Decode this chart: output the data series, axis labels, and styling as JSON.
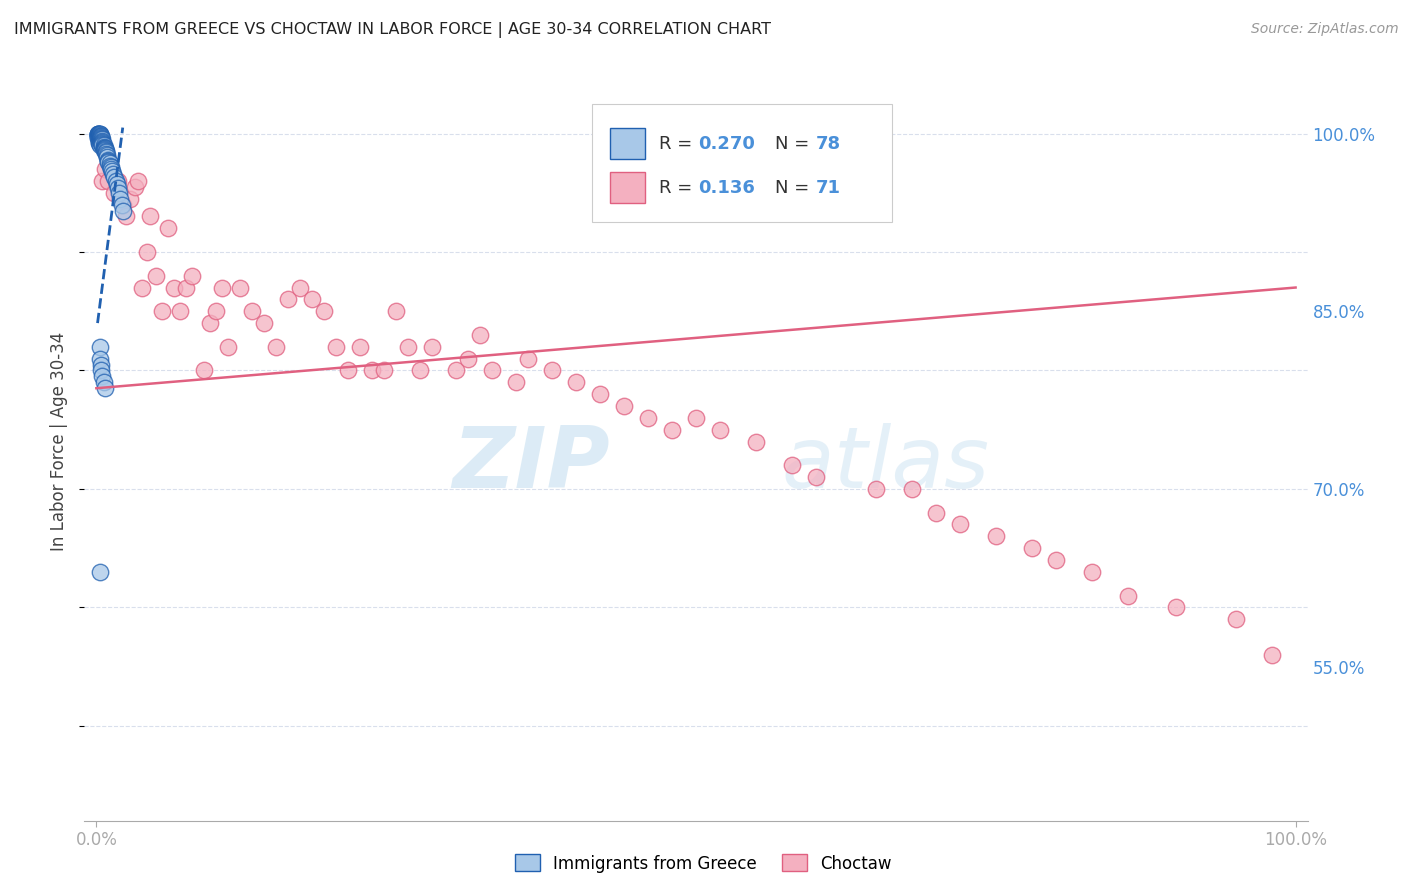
{
  "title": "IMMIGRANTS FROM GREECE VS CHOCTAW IN LABOR FORCE | AGE 30-34 CORRELATION CHART",
  "source": "Source: ZipAtlas.com",
  "ylabel": "In Labor Force | Age 30-34",
  "x_tick_labels": [
    "0.0%",
    "100.0%"
  ],
  "y_tick_labels": [
    "55.0%",
    "70.0%",
    "85.0%",
    "100.0%"
  ],
  "y_tick_positions": [
    0.55,
    0.7,
    0.85,
    1.0
  ],
  "x_lim": [
    -0.01,
    1.01
  ],
  "y_lim": [
    0.42,
    1.06
  ],
  "color_blue": "#a8c8e8",
  "color_pink": "#f4b0c0",
  "color_blue_line": "#2060b0",
  "color_pink_line": "#e06080",
  "color_axis_ticks": "#4a90d9",
  "watermark_zip": "ZIP",
  "watermark_atlas": "atlas",
  "blue_scatter_x": [
    0.001,
    0.001,
    0.001,
    0.001,
    0.001,
    0.001,
    0.001,
    0.001,
    0.002,
    0.002,
    0.002,
    0.002,
    0.002,
    0.002,
    0.002,
    0.003,
    0.003,
    0.003,
    0.003,
    0.003,
    0.003,
    0.003,
    0.003,
    0.003,
    0.003,
    0.003,
    0.003,
    0.004,
    0.004,
    0.004,
    0.004,
    0.004,
    0.004,
    0.004,
    0.005,
    0.005,
    0.005,
    0.005,
    0.005,
    0.005,
    0.006,
    0.006,
    0.006,
    0.006,
    0.006,
    0.007,
    0.007,
    0.007,
    0.008,
    0.008,
    0.008,
    0.009,
    0.009,
    0.01,
    0.01,
    0.01,
    0.011,
    0.011,
    0.012,
    0.012,
    0.013,
    0.014,
    0.015,
    0.016,
    0.017,
    0.018,
    0.019,
    0.02,
    0.021,
    0.022,
    0.003,
    0.003,
    0.004,
    0.004,
    0.005,
    0.006,
    0.007,
    0.003
  ],
  "blue_scatter_y": [
    1.0,
    1.0,
    1.0,
    1.0,
    0.999,
    0.998,
    0.997,
    0.996,
    1.0,
    0.999,
    0.998,
    0.997,
    0.995,
    0.993,
    0.992,
    1.0,
    1.0,
    0.999,
    0.998,
    0.997,
    0.996,
    0.995,
    0.994,
    0.993,
    0.992,
    0.991,
    0.99,
    0.998,
    0.997,
    0.996,
    0.995,
    0.994,
    0.993,
    0.992,
    0.995,
    0.994,
    0.993,
    0.992,
    0.991,
    0.99,
    0.99,
    0.989,
    0.988,
    0.987,
    0.986,
    0.988,
    0.987,
    0.986,
    0.985,
    0.984,
    0.983,
    0.982,
    0.98,
    0.978,
    0.977,
    0.976,
    0.975,
    0.973,
    0.972,
    0.97,
    0.968,
    0.966,
    0.963,
    0.96,
    0.957,
    0.954,
    0.95,
    0.945,
    0.94,
    0.935,
    0.82,
    0.81,
    0.805,
    0.8,
    0.795,
    0.79,
    0.785,
    0.63
  ],
  "pink_scatter_x": [
    0.005,
    0.007,
    0.01,
    0.015,
    0.018,
    0.022,
    0.025,
    0.028,
    0.032,
    0.035,
    0.038,
    0.042,
    0.045,
    0.05,
    0.055,
    0.06,
    0.065,
    0.07,
    0.075,
    0.08,
    0.09,
    0.095,
    0.1,
    0.105,
    0.11,
    0.12,
    0.13,
    0.14,
    0.15,
    0.16,
    0.17,
    0.18,
    0.19,
    0.2,
    0.21,
    0.22,
    0.23,
    0.24,
    0.25,
    0.26,
    0.27,
    0.28,
    0.3,
    0.31,
    0.32,
    0.33,
    0.35,
    0.36,
    0.38,
    0.4,
    0.42,
    0.44,
    0.46,
    0.48,
    0.5,
    0.52,
    0.55,
    0.58,
    0.6,
    0.65,
    0.68,
    0.7,
    0.72,
    0.75,
    0.78,
    0.8,
    0.83,
    0.86,
    0.9,
    0.95,
    0.98
  ],
  "pink_scatter_y": [
    0.96,
    0.97,
    0.96,
    0.95,
    0.96,
    0.94,
    0.93,
    0.945,
    0.955,
    0.96,
    0.87,
    0.9,
    0.93,
    0.88,
    0.85,
    0.92,
    0.87,
    0.85,
    0.87,
    0.88,
    0.8,
    0.84,
    0.85,
    0.87,
    0.82,
    0.87,
    0.85,
    0.84,
    0.82,
    0.86,
    0.87,
    0.86,
    0.85,
    0.82,
    0.8,
    0.82,
    0.8,
    0.8,
    0.85,
    0.82,
    0.8,
    0.82,
    0.8,
    0.81,
    0.83,
    0.8,
    0.79,
    0.81,
    0.8,
    0.79,
    0.78,
    0.77,
    0.76,
    0.75,
    0.76,
    0.75,
    0.74,
    0.72,
    0.71,
    0.7,
    0.7,
    0.68,
    0.67,
    0.66,
    0.65,
    0.64,
    0.63,
    0.61,
    0.6,
    0.59,
    0.56
  ],
  "pink_line_x0": 0.0,
  "pink_line_x1": 1.0,
  "pink_line_y0": 0.785,
  "pink_line_y1": 0.87,
  "blue_line_x0": 0.001,
  "blue_line_x1": 0.022,
  "blue_line_y0": 0.84,
  "blue_line_y1": 1.005
}
